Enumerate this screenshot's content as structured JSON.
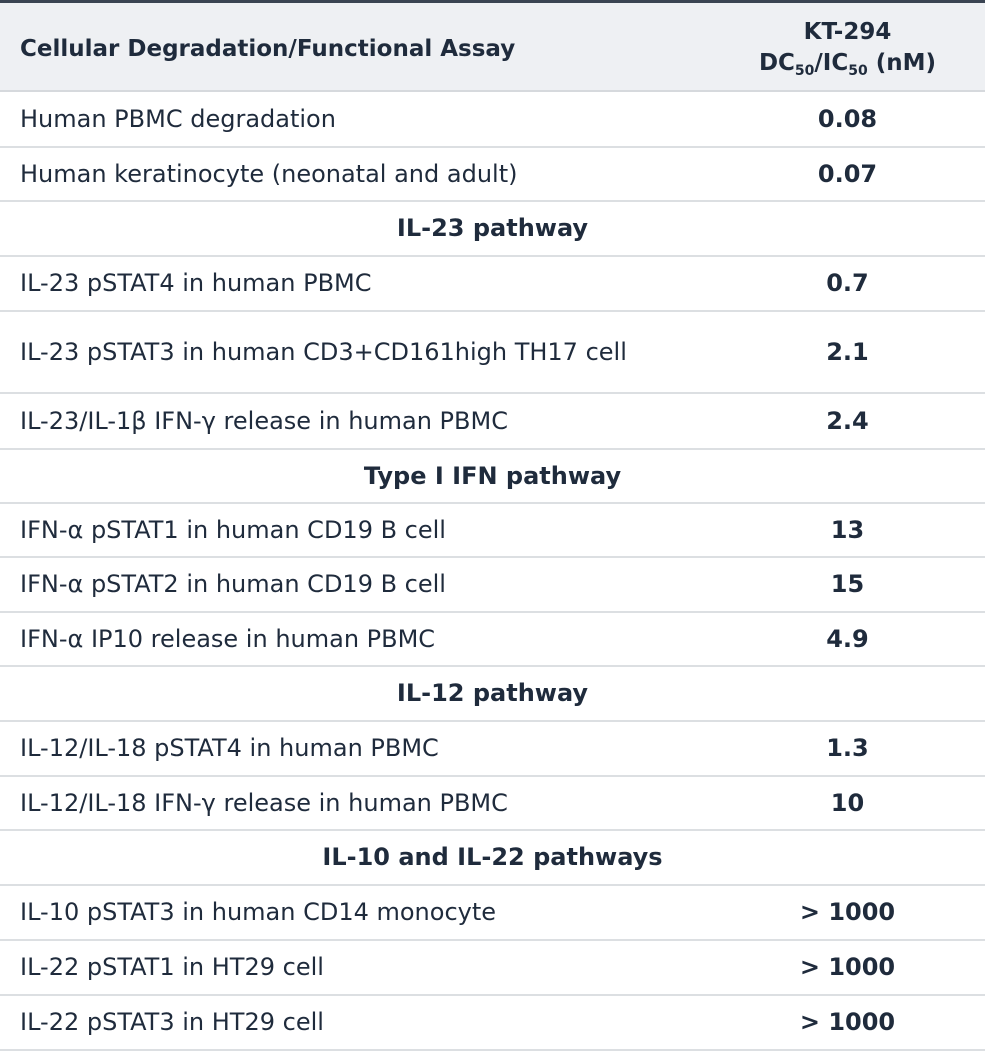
{
  "header": {
    "column1": "Cellular Degradation/Functional Assay",
    "column2": {
      "line1": "KT-294",
      "line2": [
        "DC",
        "50",
        "/IC",
        "50",
        "(nM)"
      ]
    }
  },
  "rows": [
    {
      "label": "Human PBMC degradation",
      "value": "0.08"
    },
    {
      "label": "Human keratinocyte (neonatal and adult)",
      "value": "0.07"
    },
    {
      "section": "IL-23 pathway"
    },
    {
      "label": "IL-23 pSTAT4 in human PBMC",
      "value": "0.7"
    },
    {
      "label": "IL-23 pSTAT3 in human CD3+CD161high TH17 cell",
      "value": "2.1"
    },
    {
      "label": "IL-23/IL-1β IFN-γ release in human PBMC",
      "value": "2.4"
    },
    {
      "section": "Type I IFN pathway"
    },
    {
      "label": "IFN-α pSTAT1 in human CD19 B cell",
      "value": "13"
    },
    {
      "label": "IFN-α pSTAT2 in human CD19 B cell",
      "value": "15"
    },
    {
      "label": "IFN-α IP10 release in human PBMC",
      "value": "4.9"
    },
    {
      "section": "IL-12 pathway"
    },
    {
      "label": "IL-12/IL-18 pSTAT4 in human PBMC",
      "value": "1.3"
    },
    {
      "label": "IL-12/IL-18 IFN-γ release in human PBMC",
      "value": "10"
    },
    {
      "section": "IL-10 and IL-22 pathways"
    },
    {
      "label": "IL-10 pSTAT3 in human CD14 monocyte",
      "value": "> 1000"
    },
    {
      "label": "IL-22 pSTAT1 in HT29 cell",
      "value": "> 1000"
    },
    {
      "label": "IL-22 pSTAT3 in HT29 cell",
      "value": "> 1000"
    }
  ]
}
